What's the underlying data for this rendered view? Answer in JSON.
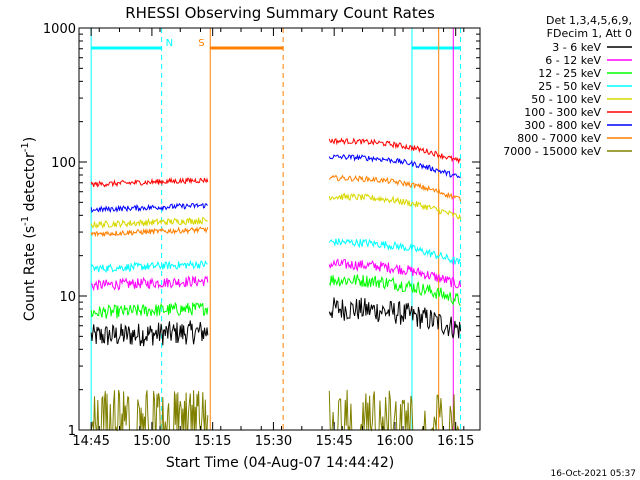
{
  "chart_data": {
    "type": "line",
    "title": "RHESSI Observing Summary Count Rates",
    "xlabel": "Start Time (04-Aug-07 14:44:42)",
    "ylabel_main": "Count Rate (s",
    "ylabel_sup1": "-1",
    "ylabel_mid": " detector",
    "ylabel_sup2": "-1",
    "ylabel_end": ")",
    "yscale": "log",
    "ylim": [
      1,
      1000
    ],
    "xlim_minutes": [
      14.7,
      16.35
    ],
    "x_tick_labels": [
      "14:45",
      "15:00",
      "15:15",
      "15:30",
      "15:45",
      "16:00",
      "16:15"
    ],
    "x_tick_values_min": [
      14.75,
      15.0,
      15.25,
      15.5,
      15.75,
      16.0,
      16.25
    ],
    "y_tick_labels": [
      "1",
      "10",
      "100",
      "1000"
    ],
    "y_tick_values": [
      1,
      10,
      100,
      1000
    ],
    "legend_header": [
      "Det 1,3,4,5,6,9,",
      "FDecim 1, Att 0"
    ],
    "legend_position": "right",
    "series": [
      {
        "name": "3 - 6 keV",
        "color": "#000000",
        "level_a": 5.0,
        "level_b": 7.0,
        "noise": 0.18
      },
      {
        "name": "6 - 12 keV",
        "color": "#ff00ff",
        "level_a": 12.0,
        "level_b": 15.0,
        "noise": 0.08
      },
      {
        "name": "12 - 25 keV",
        "color": "#00ff00",
        "level_a": 7.5,
        "level_b": 11.5,
        "noise": 0.1
      },
      {
        "name": "25 - 50 keV",
        "color": "#00ffff",
        "level_a": 16.0,
        "level_b": 22.0,
        "noise": 0.06
      },
      {
        "name": "50 - 100 keV",
        "color": "#d8d800",
        "level_a": 34.0,
        "level_b": 48.0,
        "noise": 0.05
      },
      {
        "name": "100 - 300 keV",
        "color": "#ff0000",
        "level_a": 68.0,
        "level_b": 125.0,
        "noise": 0.04
      },
      {
        "name": "300 - 800 keV",
        "color": "#0000ff",
        "level_a": 44.0,
        "level_b": 95.0,
        "noise": 0.04
      },
      {
        "name": "800 - 7000 keV",
        "color": "#ff8000",
        "level_a": 29.0,
        "level_b": 66.0,
        "noise": 0.04
      },
      {
        "name": "7000 - 15000 keV",
        "color": "#808000",
        "level_a": 1.2,
        "level_b": 1.3,
        "noise": 0.9
      }
    ],
    "data_segments_hours": [
      [
        14.75,
        15.23
      ],
      [
        15.73,
        16.27
      ]
    ],
    "flag_bars": [
      {
        "label": "N",
        "color": "#00ffff",
        "from_h": 14.75,
        "to_h": 15.04,
        "solid_edge_h": 14.75,
        "dashed_edge_h": 15.04
      },
      {
        "label": "S",
        "color": "#ff8000",
        "from_h": 15.24,
        "to_h": 15.54,
        "solid_edge_h": 15.24,
        "dashed_edge_h": 15.54
      },
      {
        "label": "",
        "color": "#00ffff",
        "from_h": 16.07,
        "to_h": 16.27,
        "solid_edge_h": 16.07,
        "dashed_edge_h": 16.27
      }
    ],
    "extra_lines": [
      {
        "color": "#ff00ff",
        "at_h": 16.24,
        "style": "solid"
      },
      {
        "color": "#ff8000",
        "at_h": 16.18,
        "style": "solid"
      }
    ]
  },
  "footer": {
    "timestamp": "16-Oct-2021 05:37"
  }
}
